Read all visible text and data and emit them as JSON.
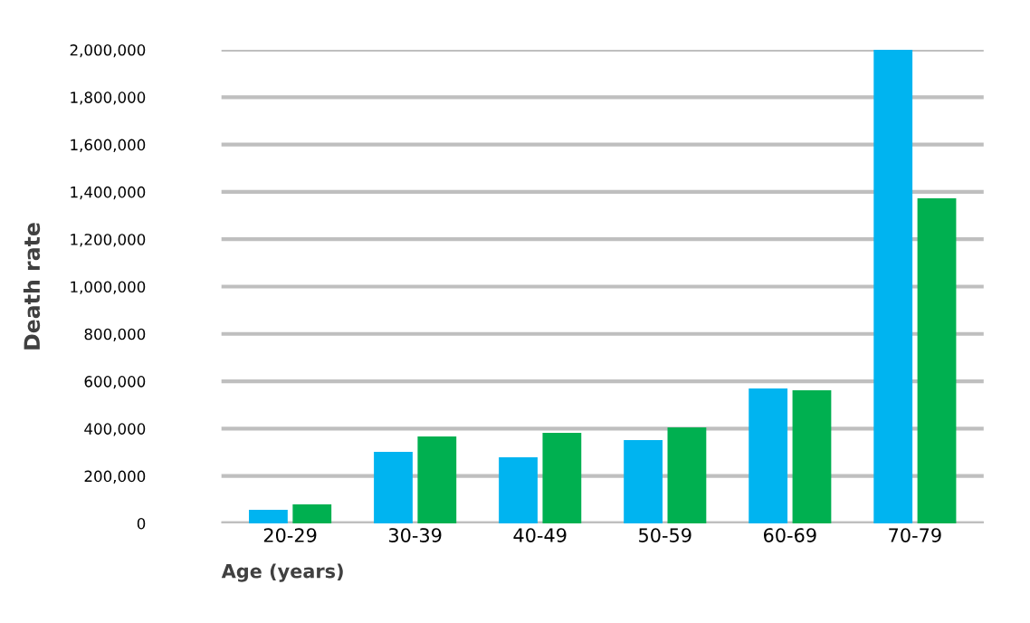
{
  "chart_data": {
    "type": "bar",
    "xlabel": "Age (years)",
    "ylabel": "Death rate",
    "categories": [
      "20-29",
      "30-39",
      "40-49",
      "50-59",
      "60-69",
      "70-79"
    ],
    "series": [
      {
        "color": "#00b4f0",
        "values": [
          57000,
          302000,
          279000,
          352000,
          570000,
          2000000
        ]
      },
      {
        "color": "#00b050",
        "values": [
          80000,
          367000,
          382000,
          405000,
          562000,
          1373000
        ]
      }
    ],
    "ylim": [
      0,
      2000000
    ],
    "yticks": [
      {
        "value": 0,
        "label": "0"
      },
      {
        "value": 200000,
        "label": "200,000"
      },
      {
        "value": 400000,
        "label": "400,000"
      },
      {
        "value": 600000,
        "label": "600,000"
      },
      {
        "value": 800000,
        "label": "800,000"
      },
      {
        "value": 1000000,
        "label": "1,000,000"
      },
      {
        "value": 1200000,
        "label": "1,200,000"
      },
      {
        "value": 1400000,
        "label": "1,400,000"
      },
      {
        "value": 1600000,
        "label": "1,600,000"
      },
      {
        "value": 1800000,
        "label": "1,800,000"
      },
      {
        "value": 2000000,
        "label": "2,000,000"
      }
    ],
    "grid": "y"
  }
}
